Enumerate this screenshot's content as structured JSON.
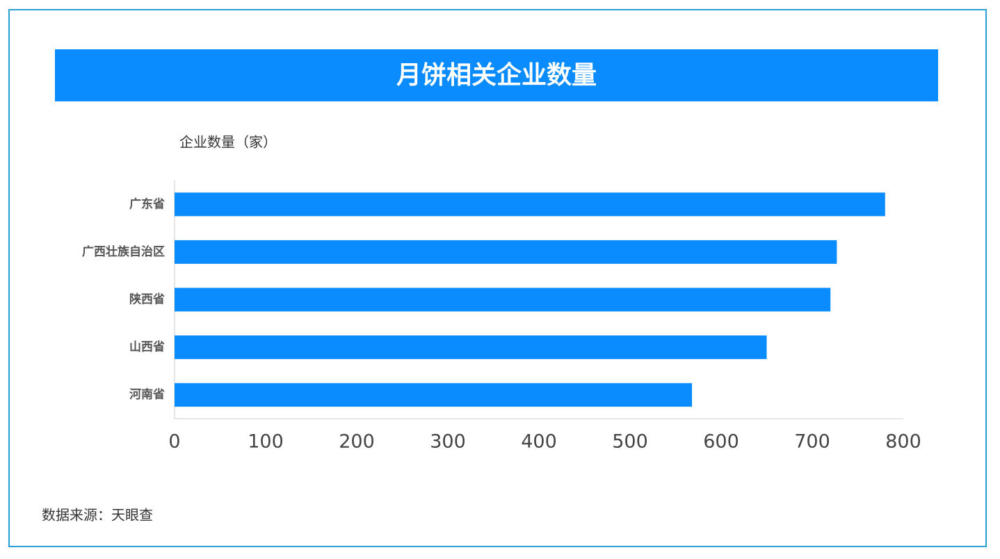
{
  "chart_data": {
    "type": "bar",
    "orientation": "horizontal",
    "title": "月饼相关企业数量",
    "y_label": "企业数量（家）",
    "source": "数据来源：天眼查",
    "categories": [
      "广东省",
      "广西壮族自治区",
      "陕西省",
      "山西省",
      "河南省"
    ],
    "values": [
      780,
      727,
      720,
      650,
      568
    ],
    "color": "#0a8cff",
    "xlim": [
      0,
      800
    ],
    "xticks": [
      0,
      100,
      200,
      300,
      400,
      500,
      600,
      700,
      800
    ]
  }
}
